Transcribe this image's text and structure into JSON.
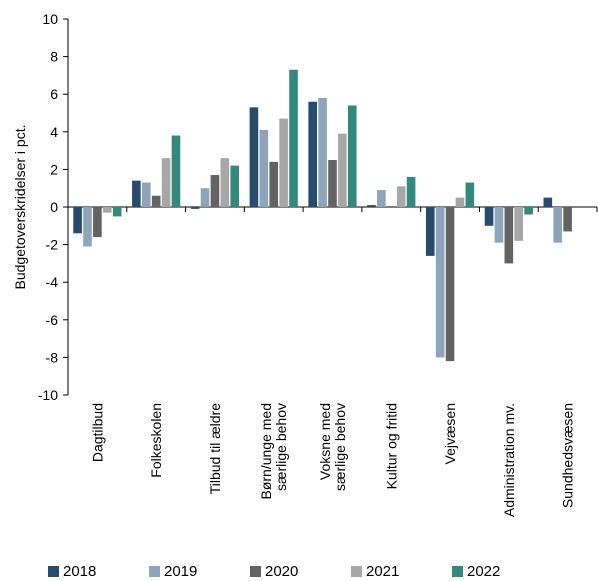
{
  "chart_data": {
    "type": "bar",
    "title": "",
    "xlabel": "",
    "ylabel": "Budgetoverskridelser i pct.",
    "ylim": [
      -10,
      10
    ],
    "yticks": [
      10,
      8,
      6,
      4,
      2,
      0,
      -2,
      -4,
      -6,
      -8,
      -10
    ],
    "ytick_labels": [
      "10",
      "8",
      "6",
      "4",
      "2",
      "0",
      "-2",
      "-4",
      "-6",
      "-8",
      "-10"
    ],
    "grid": false,
    "legend_position": "bottom",
    "categories": [
      [
        "Dagtilbud"
      ],
      [
        "Folkeskolen"
      ],
      [
        "Tilbud til ældre"
      ],
      [
        "Børn/unge med",
        "særlige behov"
      ],
      [
        "Voksne med",
        "særlige behov"
      ],
      [
        "Kultur og fritid"
      ],
      [
        "Vejvæsen"
      ],
      [
        "Administration mv."
      ],
      [
        "Sundhedsvæsen"
      ]
    ],
    "series": [
      {
        "name": "2018",
        "color": "#264b6e",
        "values": [
          -1.4,
          1.4,
          -0.1,
          5.3,
          5.6,
          0.1,
          -2.6,
          -1.0,
          0.5
        ]
      },
      {
        "name": "2019",
        "color": "#8ea4bb",
        "values": [
          -2.1,
          1.3,
          1.0,
          4.1,
          5.8,
          0.9,
          -8.0,
          -1.9,
          -1.9
        ]
      },
      {
        "name": "2020",
        "color": "#636363",
        "values": [
          -1.6,
          0.6,
          1.7,
          2.4,
          2.5,
          0.0,
          -8.2,
          -3.0,
          -1.3
        ]
      },
      {
        "name": "2021",
        "color": "#a7a7a7",
        "values": [
          -0.3,
          2.6,
          2.6,
          4.7,
          3.9,
          1.1,
          0.5,
          -1.8,
          0.0
        ]
      },
      {
        "name": "2022",
        "color": "#33897b",
        "values": [
          -0.5,
          3.8,
          2.2,
          7.3,
          5.4,
          1.6,
          1.3,
          -0.4,
          0.0
        ]
      }
    ]
  }
}
